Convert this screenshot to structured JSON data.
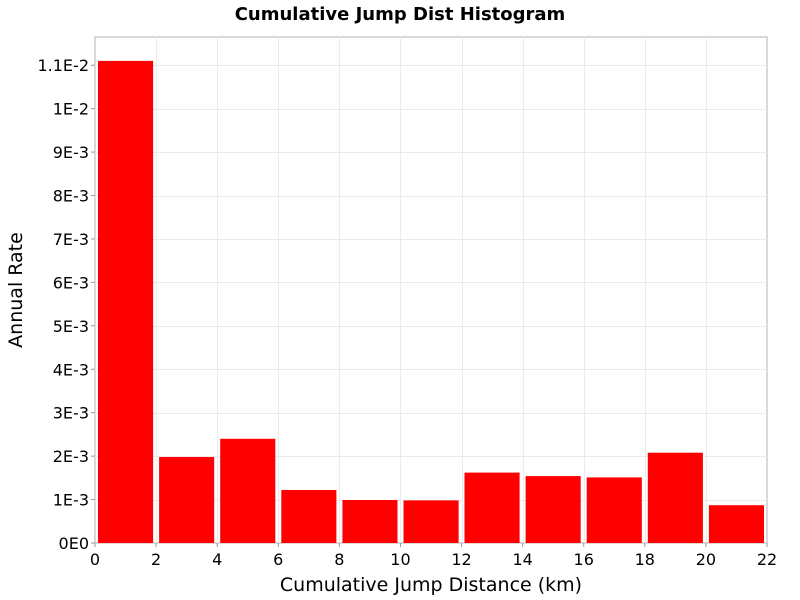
{
  "chart_data": {
    "type": "bar",
    "title": "Cumulative Jump Dist Histogram",
    "xlabel": "Cumulative Jump Distance (km)",
    "ylabel": "Annual Rate",
    "xlim": [
      0,
      22
    ],
    "ylim": [
      0,
      0.01165
    ],
    "grid": true,
    "legend": "none",
    "bar_color": "#ff0000",
    "x_ticks": [
      {
        "value": 0,
        "label": "0"
      },
      {
        "value": 2,
        "label": "2"
      },
      {
        "value": 4,
        "label": "4"
      },
      {
        "value": 6,
        "label": "6"
      },
      {
        "value": 8,
        "label": "8"
      },
      {
        "value": 10,
        "label": "10"
      },
      {
        "value": 12,
        "label": "12"
      },
      {
        "value": 14,
        "label": "14"
      },
      {
        "value": 16,
        "label": "16"
      },
      {
        "value": 18,
        "label": "18"
      },
      {
        "value": 20,
        "label": "20"
      },
      {
        "value": 22,
        "label": "22"
      }
    ],
    "y_ticks": [
      {
        "value": 0,
        "label": "0E0"
      },
      {
        "value": 0.001,
        "label": "1E-3"
      },
      {
        "value": 0.002,
        "label": "2E-3"
      },
      {
        "value": 0.003,
        "label": "3E-3"
      },
      {
        "value": 0.004,
        "label": "4E-3"
      },
      {
        "value": 0.005,
        "label": "5E-3"
      },
      {
        "value": 0.006,
        "label": "6E-3"
      },
      {
        "value": 0.007,
        "label": "7E-3"
      },
      {
        "value": 0.008,
        "label": "8E-3"
      },
      {
        "value": 0.009,
        "label": "9E-3"
      },
      {
        "value": 0.01,
        "label": "1E-2"
      },
      {
        "value": 0.011,
        "label": "1.1E-2"
      }
    ],
    "bars": [
      {
        "x_start": 0,
        "x_end": 2,
        "value": 0.0111
      },
      {
        "x_start": 2,
        "x_end": 4,
        "value": 0.00198
      },
      {
        "x_start": 4,
        "x_end": 6,
        "value": 0.0024
      },
      {
        "x_start": 6,
        "x_end": 8,
        "value": 0.00122
      },
      {
        "x_start": 8,
        "x_end": 10,
        "value": 0.00099
      },
      {
        "x_start": 10,
        "x_end": 12,
        "value": 0.00098
      },
      {
        "x_start": 12,
        "x_end": 14,
        "value": 0.00162
      },
      {
        "x_start": 14,
        "x_end": 16,
        "value": 0.00154
      },
      {
        "x_start": 16,
        "x_end": 18,
        "value": 0.00151
      },
      {
        "x_start": 18,
        "x_end": 20,
        "value": 0.00208
      },
      {
        "x_start": 20,
        "x_end": 22,
        "value": 0.00087
      }
    ]
  }
}
